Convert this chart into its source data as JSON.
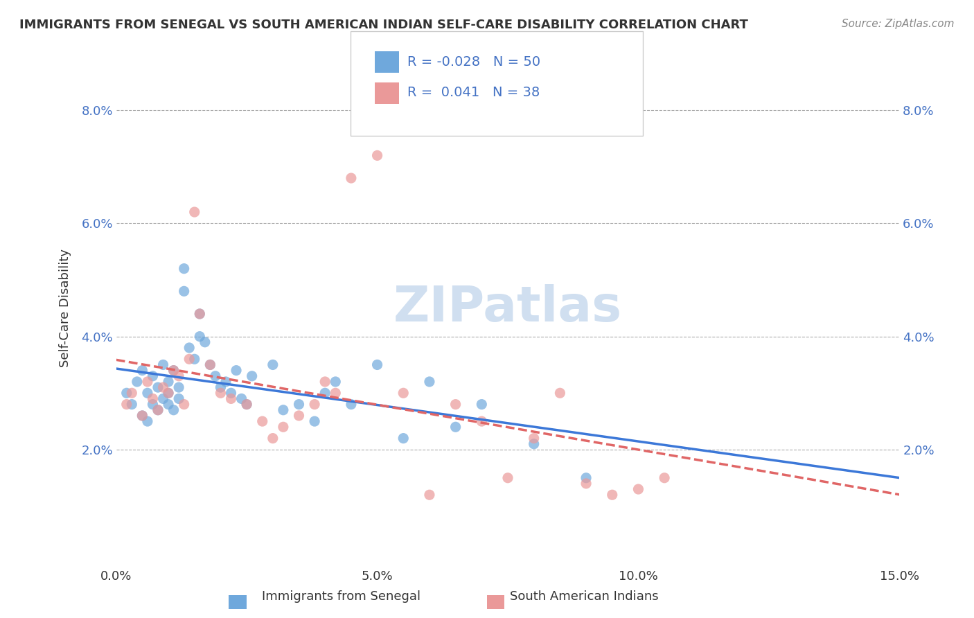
{
  "title": "IMMIGRANTS FROM SENEGAL VS SOUTH AMERICAN INDIAN SELF-CARE DISABILITY CORRELATION CHART",
  "source": "Source: ZipAtlas.com",
  "xlabel_bottom": "",
  "ylabel": "Self-Care Disability",
  "xlim": [
    0.0,
    0.15
  ],
  "ylim": [
    0.0,
    0.09
  ],
  "xticks": [
    0.0,
    0.05,
    0.1,
    0.15
  ],
  "xticklabels": [
    "0.0%",
    "5.0%",
    "10.0%",
    "15.0%"
  ],
  "yticks": [
    0.02,
    0.04,
    0.06,
    0.08
  ],
  "yticklabels": [
    "2.0%",
    "4.0%",
    "6.0%",
    "8.0%"
  ],
  "legend_labels": [
    "Immigrants from Senegal",
    "South American Indians"
  ],
  "legend_r": [
    -0.028,
    0.041
  ],
  "legend_n": [
    50,
    38
  ],
  "blue_color": "#6fa8dc",
  "pink_color": "#ea9999",
  "blue_line_color": "#3c78d8",
  "pink_line_color": "#e06666",
  "watermark": "ZIPatlas",
  "watermark_color": "#d0dff0",
  "blue_scatter_x": [
    0.002,
    0.003,
    0.004,
    0.005,
    0.005,
    0.006,
    0.006,
    0.007,
    0.007,
    0.008,
    0.008,
    0.009,
    0.009,
    0.01,
    0.01,
    0.01,
    0.011,
    0.011,
    0.012,
    0.012,
    0.013,
    0.013,
    0.014,
    0.015,
    0.016,
    0.016,
    0.017,
    0.018,
    0.019,
    0.02,
    0.021,
    0.022,
    0.023,
    0.024,
    0.025,
    0.026,
    0.03,
    0.032,
    0.035,
    0.038,
    0.04,
    0.042,
    0.045,
    0.05,
    0.055,
    0.06,
    0.065,
    0.07,
    0.08,
    0.09
  ],
  "blue_scatter_y": [
    0.03,
    0.028,
    0.032,
    0.026,
    0.034,
    0.025,
    0.03,
    0.028,
    0.033,
    0.027,
    0.031,
    0.029,
    0.035,
    0.03,
    0.028,
    0.032,
    0.034,
    0.027,
    0.029,
    0.031,
    0.048,
    0.052,
    0.038,
    0.036,
    0.04,
    0.044,
    0.039,
    0.035,
    0.033,
    0.031,
    0.032,
    0.03,
    0.034,
    0.029,
    0.028,
    0.033,
    0.035,
    0.027,
    0.028,
    0.025,
    0.03,
    0.032,
    0.028,
    0.035,
    0.022,
    0.032,
    0.024,
    0.028,
    0.021,
    0.015
  ],
  "pink_scatter_x": [
    0.002,
    0.003,
    0.005,
    0.006,
    0.007,
    0.008,
    0.009,
    0.01,
    0.011,
    0.012,
    0.013,
    0.014,
    0.015,
    0.016,
    0.018,
    0.02,
    0.022,
    0.025,
    0.028,
    0.03,
    0.032,
    0.035,
    0.038,
    0.04,
    0.042,
    0.045,
    0.05,
    0.055,
    0.06,
    0.065,
    0.07,
    0.075,
    0.08,
    0.085,
    0.09,
    0.095,
    0.1,
    0.105
  ],
  "pink_scatter_y": [
    0.028,
    0.03,
    0.026,
    0.032,
    0.029,
    0.027,
    0.031,
    0.03,
    0.034,
    0.033,
    0.028,
    0.036,
    0.062,
    0.044,
    0.035,
    0.03,
    0.029,
    0.028,
    0.025,
    0.022,
    0.024,
    0.026,
    0.028,
    0.032,
    0.03,
    0.068,
    0.072,
    0.03,
    0.012,
    0.028,
    0.025,
    0.015,
    0.022,
    0.03,
    0.014,
    0.012,
    0.013,
    0.015
  ]
}
